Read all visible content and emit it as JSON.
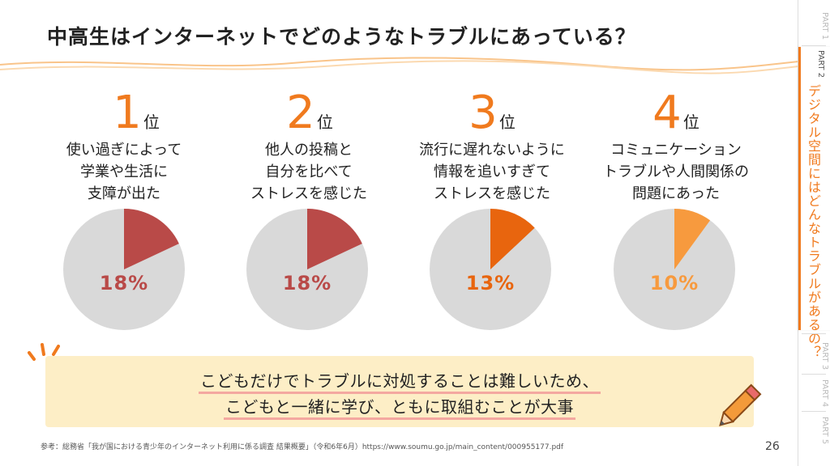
{
  "title": "中高生はインターネットでどのようなトラブルにあっている？",
  "rankings": [
    {
      "rank": "1",
      "suffix": "位",
      "lines": [
        "使い過ぎによって",
        "学業や生活に",
        "支障が出た"
      ],
      "label": "18%"
    },
    {
      "rank": "2",
      "suffix": "位",
      "lines": [
        "他人の投稿と",
        "自分を比べて",
        "ストレスを感じた"
      ],
      "label": "18%"
    },
    {
      "rank": "3",
      "suffix": "位",
      "lines": [
        "流行に遅れないように",
        "情報を追いすぎて",
        "ストレスを感じた"
      ],
      "label": "13%"
    },
    {
      "rank": "4",
      "suffix": "位",
      "lines": [
        "コミュニケーション",
        "トラブルや人間関係の",
        "問題にあった"
      ],
      "label": "10%"
    }
  ],
  "chart_data": {
    "type": "pie",
    "categories": [
      "使い過ぎによって学業や生活に支障が出た",
      "他人の投稿と自分を比べてストレスを感じた",
      "流行に遅れないように情報を追いすぎてストレスを感じた",
      "コミュニケーショントラブルや人間関係の問題にあった"
    ],
    "values": [
      18,
      18,
      13,
      10
    ],
    "units": "%",
    "colors": [
      "#b94a48",
      "#b94a48",
      "#e8650e",
      "#f79a3e"
    ],
    "remainder_color": "#d9d9d9"
  },
  "callout": {
    "line1": "こどもだけでトラブルに対処することは難しいため、",
    "line2": "こどもと一緒に学び、ともに取組むことが大事"
  },
  "footer": "参考：総務省「我が国における青少年のインターネット利用に係る調査 結果概要」（令和6年6月）https://www.soumu.go.jp/main_content/000955177.pdf",
  "page_number": "26",
  "sidebar": {
    "tabs": [
      {
        "label": "PART 1"
      },
      {
        "label": "PART 2",
        "title": "デジタル空間にはどんなトラブルがあるの？"
      },
      {
        "label": "PART 3"
      },
      {
        "label": "PART 4"
      },
      {
        "label": "PART 5"
      }
    ]
  },
  "colors": {
    "accent": "#f07a1e",
    "callout_bg": "#fdeec6",
    "underline": "#f4a8a0"
  }
}
